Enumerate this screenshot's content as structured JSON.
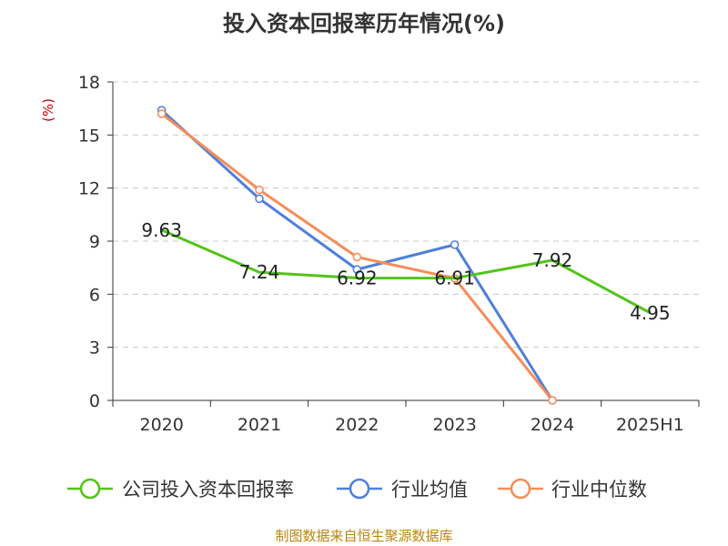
{
  "chart_data": {
    "type": "line",
    "title": "投入资本回报率历年情况(%)",
    "unit_label": "(%)",
    "categories": [
      "2020",
      "2021",
      "2022",
      "2023",
      "2024",
      "2025H1"
    ],
    "ylim": [
      0,
      18
    ],
    "yticks": [
      "0",
      "3",
      "6",
      "9",
      "12",
      "15",
      "18"
    ],
    "grid": true,
    "legend_position": "bottom",
    "series": [
      {
        "name": "公司投入资本回报率",
        "color": "#52c41a",
        "values": [
          9.63,
          7.24,
          6.92,
          6.91,
          7.92,
          4.95
        ],
        "labels": [
          "9.63",
          "7.24",
          "6.92",
          "6.91",
          "7.92",
          "4.95"
        ]
      },
      {
        "name": "行业均值",
        "color": "#4f7fdb",
        "values": [
          16.4,
          11.4,
          7.4,
          8.8,
          0.0,
          null
        ]
      },
      {
        "name": "行业中位数",
        "color": "#f58d59",
        "values": [
          16.2,
          11.9,
          8.1,
          6.9,
          0.0,
          null
        ]
      }
    ]
  },
  "source": "制图数据来自恒生聚源数据库"
}
